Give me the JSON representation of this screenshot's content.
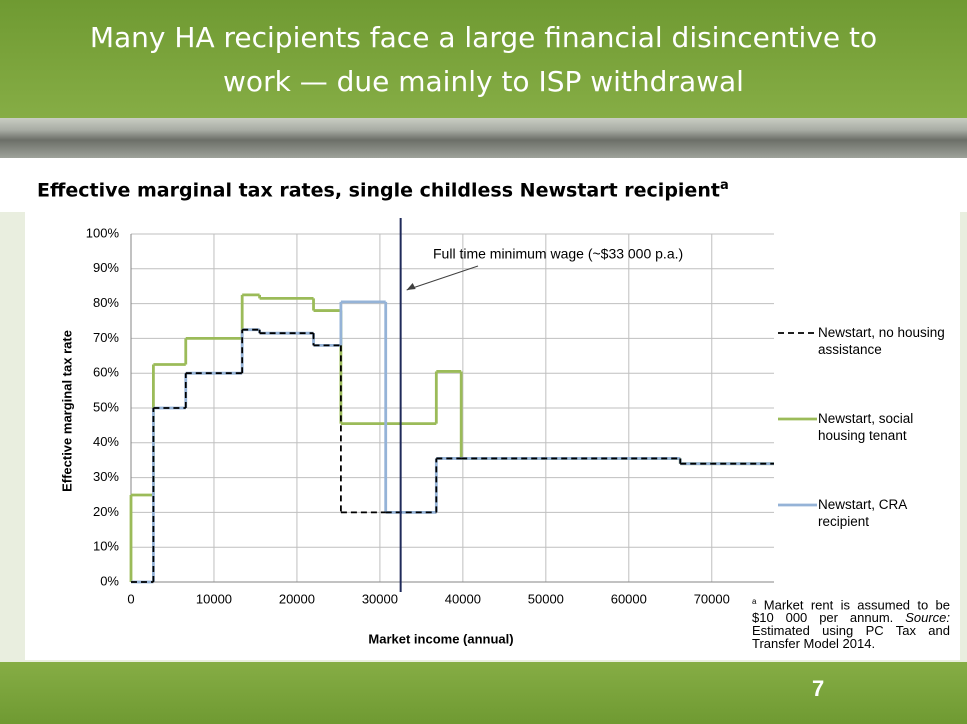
{
  "slide": {
    "title": "Many HA recipients face a large financial disincentive to work — due mainly to ISP withdrawal",
    "page_number": "7"
  },
  "chart_data": {
    "type": "line",
    "step": "post",
    "title": "Effective marginal tax rates, single childless Newstart recipient",
    "title_note_marker": "a",
    "x_label": "Market income (annual)",
    "y_label": "Effective marginal tax rate",
    "x": [
      0,
      2700,
      6600,
      13400,
      15500,
      22000,
      25300,
      30700,
      36800,
      39800,
      66200
    ],
    "series": [
      {
        "name": "Newstart, social housing tenant",
        "color": "#9bbb59",
        "style": "solid",
        "values": [
          25,
          62.5,
          70,
          82.5,
          81.5,
          78,
          45.5,
          45.5,
          60.5,
          35.5,
          34
        ]
      },
      {
        "name": "Newstart, CRA recipient",
        "color": "#95b3d7",
        "style": "solid",
        "values": [
          0,
          50,
          60,
          72.5,
          71.5,
          68,
          80.5,
          20,
          35.5,
          35.5,
          34
        ]
      },
      {
        "name": "Newstart, no housing assistance",
        "color": "#000000",
        "style": "dashed",
        "values": [
          0,
          50,
          60,
          72.5,
          71.5,
          68,
          20,
          20,
          35.5,
          35.5,
          34
        ]
      }
    ],
    "legend_order": [
      2,
      0,
      1
    ],
    "xlim": [
      0,
      77500
    ],
    "ylim": [
      0,
      100
    ],
    "xticks": [
      0,
      10000,
      20000,
      30000,
      40000,
      50000,
      60000,
      70000
    ],
    "yticks": [
      {
        "value": 0,
        "label": "0%"
      },
      {
        "value": 10,
        "label": "10%"
      },
      {
        "value": 20,
        "label": "20%"
      },
      {
        "value": 30,
        "label": "30%"
      },
      {
        "value": 40,
        "label": "40%"
      },
      {
        "value": 50,
        "label": "50%"
      },
      {
        "value": 60,
        "label": "60%"
      },
      {
        "value": 70,
        "label": "70%"
      },
      {
        "value": 80,
        "label": "80%"
      },
      {
        "value": 90,
        "label": "90%"
      },
      {
        "value": 100,
        "label": "100%"
      }
    ],
    "grid": true,
    "marker_line": {
      "x": 32500,
      "label": "Full time minimum wage (~$33 000 p.a.)"
    },
    "footnote": {
      "marker": "a",
      "text": "Market rent is assumed to be $10 000 per annum.",
      "source_label": "Source:",
      "source": "Estimated using PC Tax and Transfer Model 2014."
    }
  }
}
